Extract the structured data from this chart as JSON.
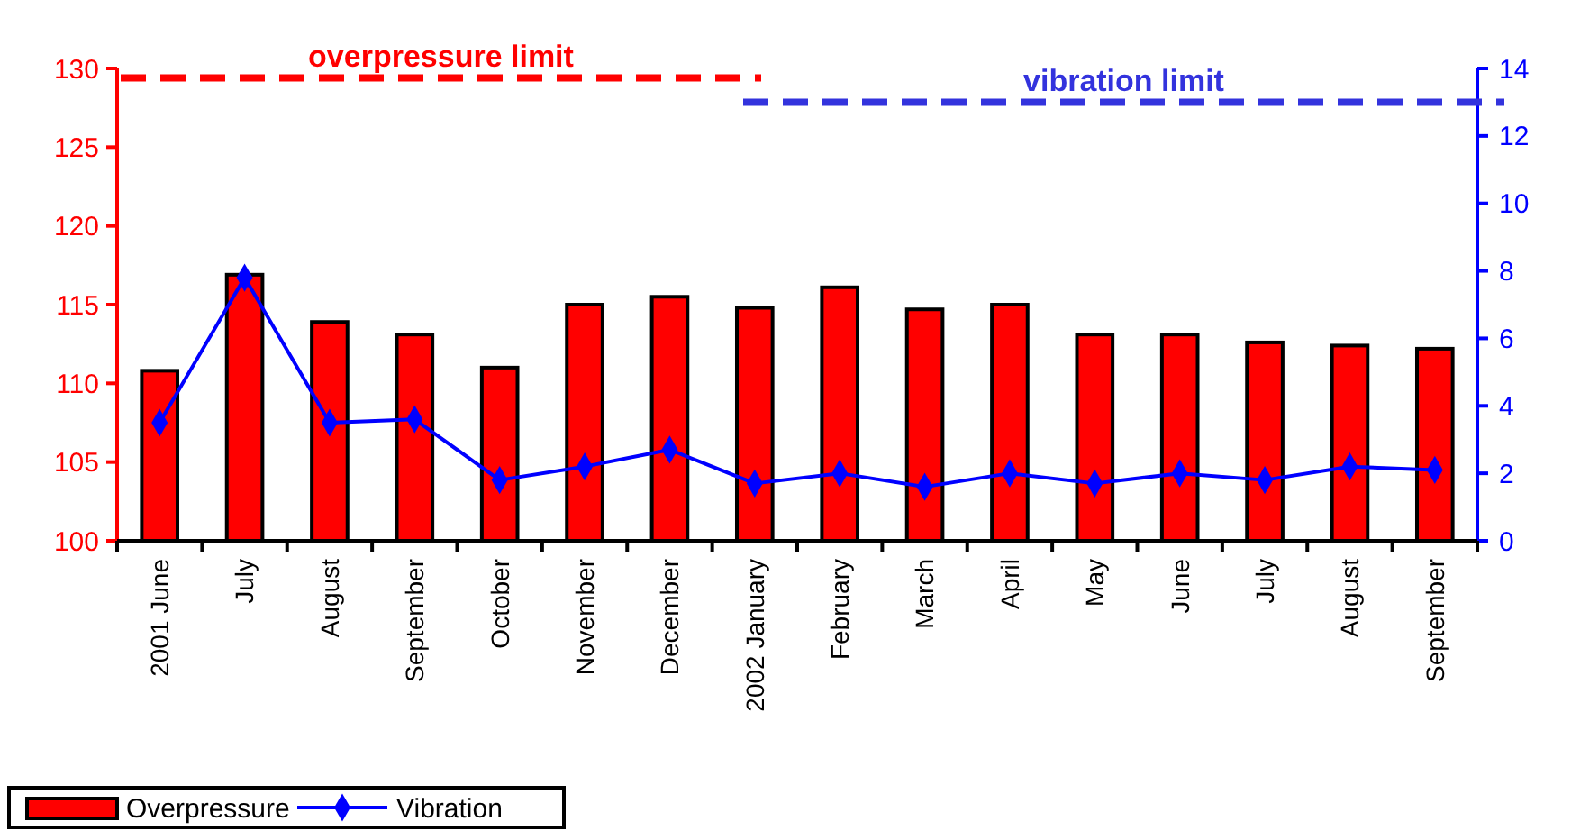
{
  "chart_data": {
    "type": "bar",
    "categories": [
      "2001 June",
      "July",
      "August",
      "September",
      "October",
      "November",
      "December",
      "2002 January",
      "February",
      "March",
      "April",
      "May",
      "June",
      "July",
      "August",
      "September"
    ],
    "series": [
      {
        "name": "Overpressure",
        "color": "#ff0000",
        "values": [
          110.8,
          116.9,
          113.9,
          113.1,
          111.0,
          115.0,
          115.5,
          114.8,
          116.1,
          114.7,
          115.0,
          113.1,
          113.1,
          112.6,
          112.4,
          112.2
        ]
      },
      {
        "name": "Vibration",
        "type": "line",
        "axis": "y2",
        "color": "#0000ff",
        "marker": "diamond",
        "values": [
          3.5,
          7.8,
          3.5,
          3.6,
          1.8,
          2.2,
          2.7,
          1.7,
          2.0,
          1.6,
          2.0,
          1.7,
          2.0,
          1.8,
          2.2,
          2.1
        ]
      }
    ],
    "ylim": [
      100,
      130
    ],
    "yticks": [
      100,
      105,
      110,
      115,
      120,
      125,
      130
    ],
    "y2lim": [
      0,
      14
    ],
    "y2ticks": [
      0,
      2,
      4,
      6,
      8,
      10,
      12,
      14
    ],
    "ref_lines": [
      {
        "axis": "y",
        "value": 129.4,
        "label": "overpressure limit",
        "color": "#ff0000",
        "line_style": "dashed"
      },
      {
        "axis": "y2",
        "value": 13,
        "label": "vibration limit",
        "color": "#3333dd",
        "line_style": "dashed"
      }
    ],
    "legend": "bottom left",
    "grid": false
  }
}
